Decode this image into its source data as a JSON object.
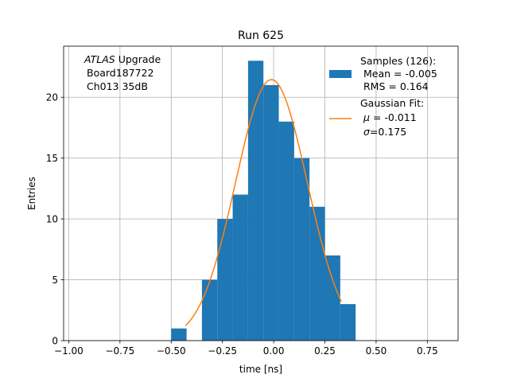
{
  "chart_data": {
    "type": "bar",
    "title": "Run 625",
    "xlabel": "time [ns]",
    "ylabel": "Entries",
    "xlim": [
      -1.025,
      0.9
    ],
    "ylim": [
      0,
      24.2
    ],
    "grid": true,
    "xticks": [
      -1.0,
      -0.75,
      -0.5,
      -0.25,
      0.0,
      0.25,
      0.5,
      0.75
    ],
    "xtick_labels": [
      "−1.00",
      "−0.75",
      "−0.50",
      "−0.25",
      "0.00",
      "0.25",
      "0.50",
      "0.75"
    ],
    "yticks": [
      0,
      5,
      10,
      15,
      20
    ],
    "ytick_labels": [
      "0",
      "5",
      "10",
      "15",
      "20"
    ],
    "bin_width": 0.075,
    "bins": [
      {
        "x0": -0.5,
        "count": 1
      },
      {
        "x0": -0.35,
        "count": 5
      },
      {
        "x0": -0.275,
        "count": 10
      },
      {
        "x0": -0.2,
        "count": 12
      },
      {
        "x0": -0.125,
        "count": 23
      },
      {
        "x0": -0.05,
        "count": 21
      },
      {
        "x0": 0.025,
        "count": 18
      },
      {
        "x0": 0.1,
        "count": 15
      },
      {
        "x0": 0.175,
        "count": 11
      },
      {
        "x0": 0.25,
        "count": 7
      },
      {
        "x0": 0.325,
        "count": 3
      }
    ],
    "fit": {
      "mu": -0.011,
      "sigma": 0.175,
      "amplitude": 21.45,
      "x_range": [
        -0.43,
        0.33
      ]
    },
    "colors": {
      "bars": "#1f77b4",
      "fit": "#ff7f0e",
      "grid": "#b0b0b0"
    },
    "annotation": {
      "atlas": "ATLAS",
      "upgrade": " Upgrade",
      "board": "Board187722",
      "channel": "Ch013 35dB"
    },
    "legend": {
      "placement": "top-right",
      "samples_title": "Samples (126):",
      "samples_mean": "Mean = -0.005",
      "samples_rms": "RMS = 0.164",
      "fit_title": "Gaussian Fit:",
      "fit_mu_symbol": "μ",
      "fit_mu_value": " = -0.011",
      "fit_sigma_symbol": "σ",
      "fit_sigma_value": "=0.175"
    }
  }
}
